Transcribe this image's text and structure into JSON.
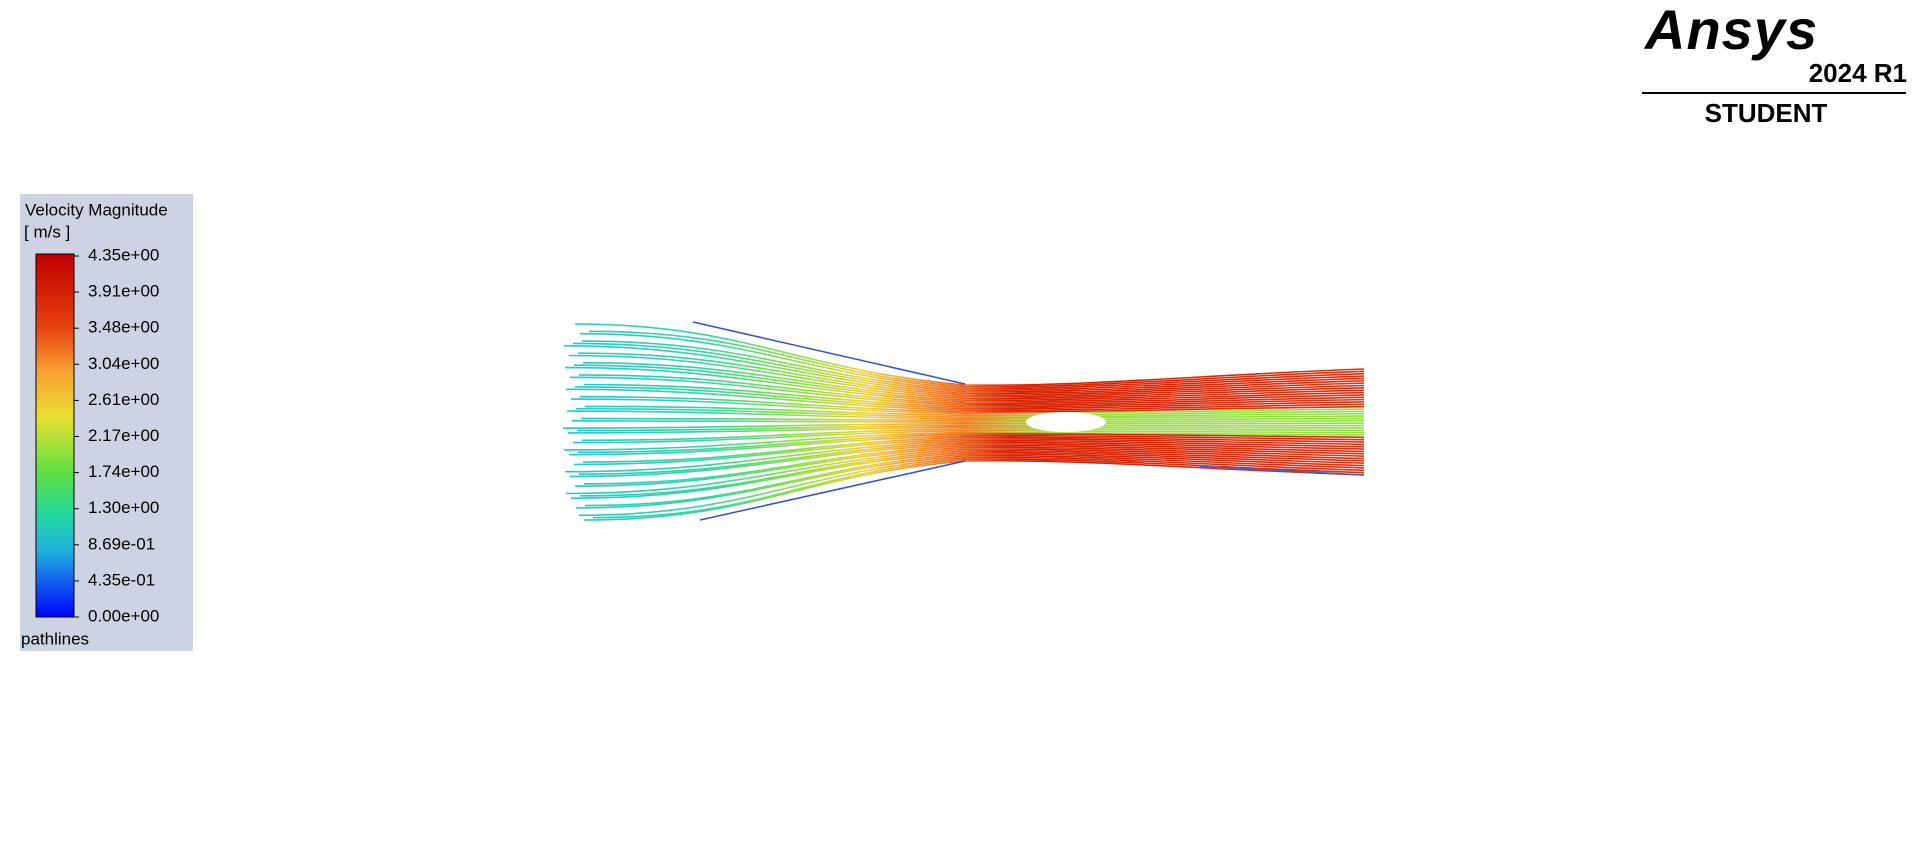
{
  "legend": {
    "title": "Velocity Magnitude",
    "unit": "[ m/s ]",
    "labels": [
      "4.35e+00",
      "3.91e+00",
      "3.48e+00",
      "3.04e+00",
      "2.61e+00",
      "2.17e+00",
      "1.74e+00",
      "1.30e+00",
      "8.69e-01",
      "4.35e-01",
      "0.00e+00"
    ],
    "footer": "pathlines"
  },
  "logo": {
    "name": "Ansys",
    "version": "2024 R1",
    "edition": "STUDENT"
  }
}
